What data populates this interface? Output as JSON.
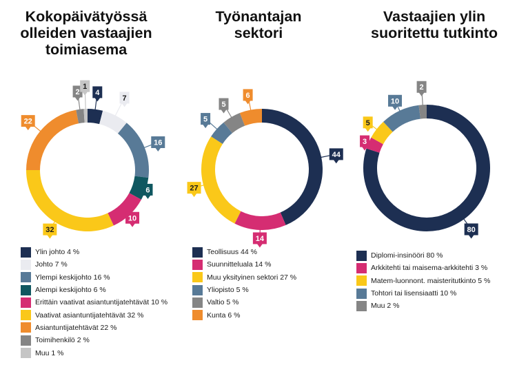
{
  "chart_data": [
    {
      "type": "pie",
      "title": "Kokopäivätyössä olleiden vastaajien toimiasema",
      "categories": [
        "Ylin johto",
        "Johto",
        "Ylempi keskijohto",
        "Alempi keskijohto",
        "Erittäin vaativat asiantuntijatehtävät",
        "Vaativat asiantuntijatehtävät",
        "Asiantuntijatehtävät",
        "Toimihenkilö",
        "Muu"
      ],
      "values": [
        4,
        7,
        16,
        6,
        10,
        32,
        22,
        2,
        1
      ],
      "colors": [
        "#1d2f52",
        "#eaebf0",
        "#587a97",
        "#0f5760",
        "#d52d72",
        "#fac819",
        "#ef8c2d",
        "#858585",
        "#c5c5c5"
      ],
      "legend": [
        "Ylin johto 4 %",
        "Johto 7 %",
        "Ylempi keskijohto 16 %",
        "Alempi keskijohto 6 %",
        "Erittäin vaativat asiantuntijatehtävät 10 %",
        "Vaativat asiantuntijatehtävät 32 %",
        "Asiantuntijatehtävät 22 %",
        "Toimihenkilö 2 %",
        "Muu 1 %"
      ],
      "labels": [
        "4",
        "7",
        "16",
        "6",
        "10",
        "32",
        "22",
        "2",
        "1"
      ]
    },
    {
      "type": "pie",
      "title": "Työnantajan sektori",
      "categories": [
        "Teollisuus",
        "Suunnitteluala",
        "Muu yksityinen sektori",
        "Yliopisto",
        "Valtio",
        "Kunta"
      ],
      "values": [
        44,
        14,
        27,
        5,
        5,
        6
      ],
      "colors": [
        "#1d2f52",
        "#d52d72",
        "#fac819",
        "#587a97",
        "#858585",
        "#ef8c2d"
      ],
      "legend": [
        "Teollisuus 44 %",
        "Suunnitteluala 14 %",
        "Muu yksityinen sektori 27 %",
        "Yliopisto 5 %",
        "Valtio 5 %",
        "Kunta 6 %"
      ],
      "labels": [
        "44",
        "14",
        "27",
        "5",
        "5",
        "6"
      ]
    },
    {
      "type": "pie",
      "title": "Vastaajien ylin suoritettu tutkinto",
      "categories": [
        "Diplomi-insinööri",
        "Arkkitehti tai maisema-arkkitehti",
        "Matem-luonnont. maisteritutkinto",
        "Tohtori tai lisensiaatti",
        "Muu"
      ],
      "values": [
        80,
        3,
        5,
        10,
        2
      ],
      "colors": [
        "#1d2f52",
        "#d52d72",
        "#fac819",
        "#587a97",
        "#858585"
      ],
      "legend": [
        "Diplomi-insinööri 80 %",
        "Arkkitehti tai maisema-arkkitehti 3 %",
        "Matem-luonnont. maisteritutkinto 5 %",
        "Tohtori tai lisensiaatti 10 %",
        "Muu 2 %"
      ],
      "labels": [
        "80",
        "3",
        "5",
        "10",
        "2"
      ]
    }
  ]
}
